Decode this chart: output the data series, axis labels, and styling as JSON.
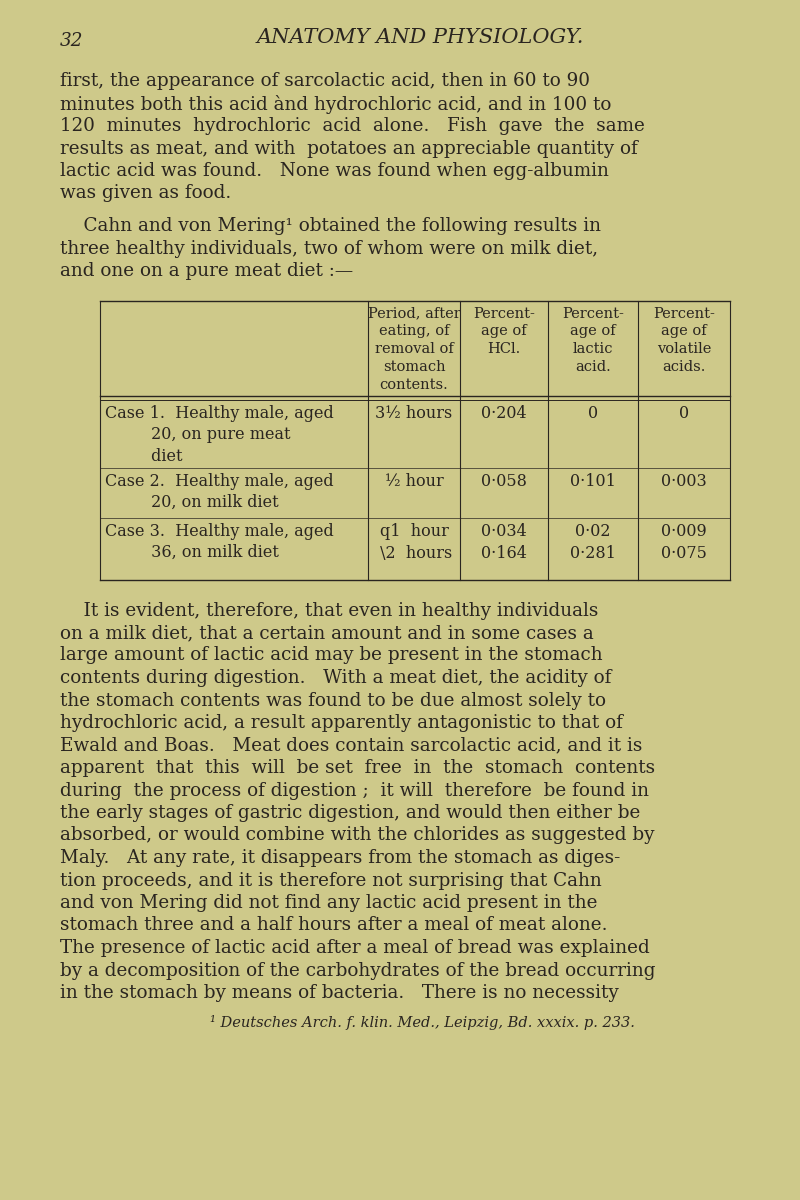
{
  "bg_color": "#cec98a",
  "text_color": "#2a2520",
  "page_number": "32",
  "header_title": "ANATOMY AND PHYSIOLOGY.",
  "para1_lines": [
    "first, the appearance of sarcolactic acid, then in 60 to 90",
    "minutes both this acid ànd hydrochloric acid, and in 100 to",
    "120  minutes  hydrochloric  acid  alone.   Fish  gave  the  same",
    "results as meat, and with  potatoes an appreciable quantity of",
    "lactic acid was found.   None was found when egg-albumin",
    "was given as food."
  ],
  "para2_lines": [
    "    Cahn and von Mering¹ obtained the following results in",
    "three healthy individuals, two of whom were on milk diet,",
    "and one on a pure meat diet :—"
  ],
  "table_header": [
    "",
    "Period, after\neating, of\nremoval of\nstomach\ncontents.",
    "Percent-\nage of\nHCl.",
    "Percent-\nage of\nlactic\nacid.",
    "Percent-\nage of\nvolatile\nacids."
  ],
  "table_rows": [
    [
      "Case 1.  Healthy male, aged\n         20, on pure meat\n         diet",
      "3½ hours",
      "0·204",
      "0",
      "0"
    ],
    [
      "Case 2.  Healthy male, aged\n         20, on milk diet",
      "½ hour",
      "0·058",
      "0·101",
      "0·003"
    ],
    [
      "Case 3.  Healthy male, aged\n         36, on milk diet",
      "q1  hour\n \\2  hours",
      "0·034\n0·164",
      "0·02\n0·281",
      "0·009\n0·075"
    ]
  ],
  "para3_lines": [
    "    It is evident, therefore, that even in healthy individuals",
    "on a milk diet, that a certain amount and in some cases a",
    "large amount of lactic acid may be present in the stomach",
    "contents during digestion.   With a meat diet, the acidity of",
    "the stomach contents was found to be due almost solely to",
    "hydrochloric acid, a result apparently antagonistic to that of",
    "Ewald and Boas.   Meat does contain sarcolactic acid, and it is",
    "apparent  that  this  will  be set  free  in  the  stomach  contents",
    "during  the process of digestion ;  it will  therefore  be found in",
    "the early stages of gastric digestion, and would then either be",
    "absorbed, or would combine with the chlorides as suggested by",
    "Maly.   At any rate, it disappears from the stomach as diges-",
    "tion proceeds, and it is therefore not surprising that Cahn",
    "and von Mering did not find any lactic acid present in the",
    "stomach three and a half hours after a meal of meat alone.",
    "The presence of lactic acid after a meal of bread was explained",
    "by a decomposition of the carbohydrates of the bread occurring",
    "in the stomach by means of bacteria.   There is no necessity"
  ],
  "footnote": "¹ Deutsches Arch. f. klin. Med., Leipzig, Bd. xxxix. p. 233."
}
